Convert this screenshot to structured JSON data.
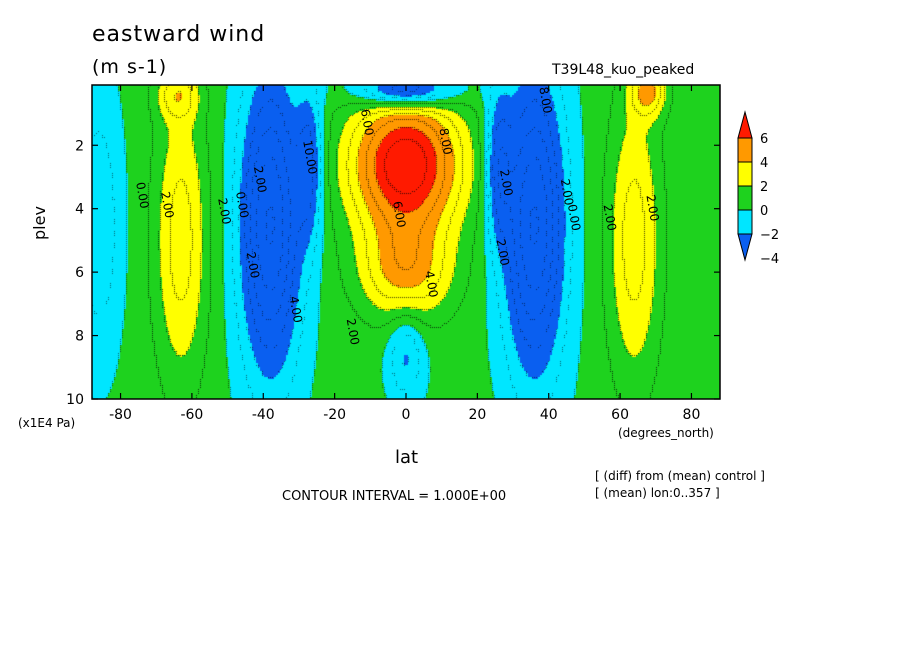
{
  "chart_data": {
    "type": "heatmap",
    "title": "eastward wind",
    "units": "(m s-1)",
    "run_label": "T39L48_kuo_peaked",
    "xlabel": "lat",
    "x_unit": "(degrees_north)",
    "ylabel": "plev",
    "y_unit": "(x1E4 Pa)",
    "xlim": [
      -88,
      88
    ],
    "ylim": [
      10,
      0.1
    ],
    "y_inverted": true,
    "x_ticks": [
      -80,
      -60,
      -40,
      -20,
      0,
      20,
      40,
      60,
      80
    ],
    "y_ticks": [
      2,
      4,
      6,
      8,
      10
    ],
    "contour_interval_text": "CONTOUR INTERVAL = 1.000E+00",
    "contour_interval": 1.0,
    "notes": [
      "[ (diff) from (mean) control ]",
      "[ (mean) lon:0..357 ]"
    ],
    "colorbar": {
      "levels": [
        -4,
        -2,
        0,
        2,
        4,
        6
      ],
      "labels": [
        "6",
        "4",
        "2",
        "0",
        "−2",
        "−4"
      ],
      "colors": [
        "#0a5ff0",
        "#00e6ff",
        "#1ed21e",
        "#ffff00",
        "#ff9900",
        "#ff1a00"
      ]
    },
    "contour_labels": [
      {
        "lat": -12,
        "p": 1.3,
        "text": "6.00"
      },
      {
        "lat": 10,
        "p": 1.9,
        "text": "8.00"
      },
      {
        "lat": -28,
        "p": 2.4,
        "text": "10.00"
      },
      {
        "lat": -75,
        "p": 3.6,
        "text": "0.00"
      },
      {
        "lat": -68,
        "p": 3.9,
        "text": "2.00"
      },
      {
        "lat": -52,
        "p": 4.1,
        "text": "2.00"
      },
      {
        "lat": -47,
        "p": 3.9,
        "text": "0.00"
      },
      {
        "lat": -42,
        "p": 3.1,
        "text": "2.00"
      },
      {
        "lat": -44,
        "p": 5.8,
        "text": "2.00"
      },
      {
        "lat": -32,
        "p": 7.2,
        "text": "4.00"
      },
      {
        "lat": -16,
        "p": 7.9,
        "text": "2.00"
      },
      {
        "lat": -3,
        "p": 4.2,
        "text": "6.00"
      },
      {
        "lat": 6,
        "p": 6.4,
        "text": "4.00"
      },
      {
        "lat": 26,
        "p": 5.4,
        "text": "2.00"
      },
      {
        "lat": 27,
        "p": 3.2,
        "text": "2.00"
      },
      {
        "lat": 44,
        "p": 3.5,
        "text": "2.00"
      },
      {
        "lat": 46,
        "p": 4.3,
        "text": "0.00"
      },
      {
        "lat": 56,
        "p": 4.3,
        "text": "2.00"
      },
      {
        "lat": 68,
        "p": 4.0,
        "text": "2.00"
      },
      {
        "lat": 38,
        "p": 0.6,
        "text": "8.00"
      }
    ],
    "field_features": [
      {
        "name": "equatorial upper jet",
        "lat": 0,
        "p": 2.6,
        "value": 7.5
      },
      {
        "name": "southern westerly band",
        "lat": -64,
        "p": 5.0,
        "value": 3
      },
      {
        "name": "northern westerly band",
        "lat": 64,
        "p": 5.0,
        "value": 3
      },
      {
        "name": "southern easterly trough",
        "lat": -38,
        "p": 4.5,
        "value": -5.5
      },
      {
        "name": "northern easterly trough",
        "lat": 36,
        "p": 4.5,
        "value": -5.5
      },
      {
        "name": "upper equatorial minimum",
        "lat": -3,
        "p": 0.4,
        "value": -5
      },
      {
        "name": "top maximum south",
        "lat": -64,
        "p": 0.5,
        "value": 4.5
      },
      {
        "name": "top maximum north",
        "lat": 68,
        "p": 0.3,
        "value": 6.5
      },
      {
        "name": "lower equatorial dip",
        "lat": 0,
        "p": 8.3,
        "value": 0.5
      }
    ]
  }
}
